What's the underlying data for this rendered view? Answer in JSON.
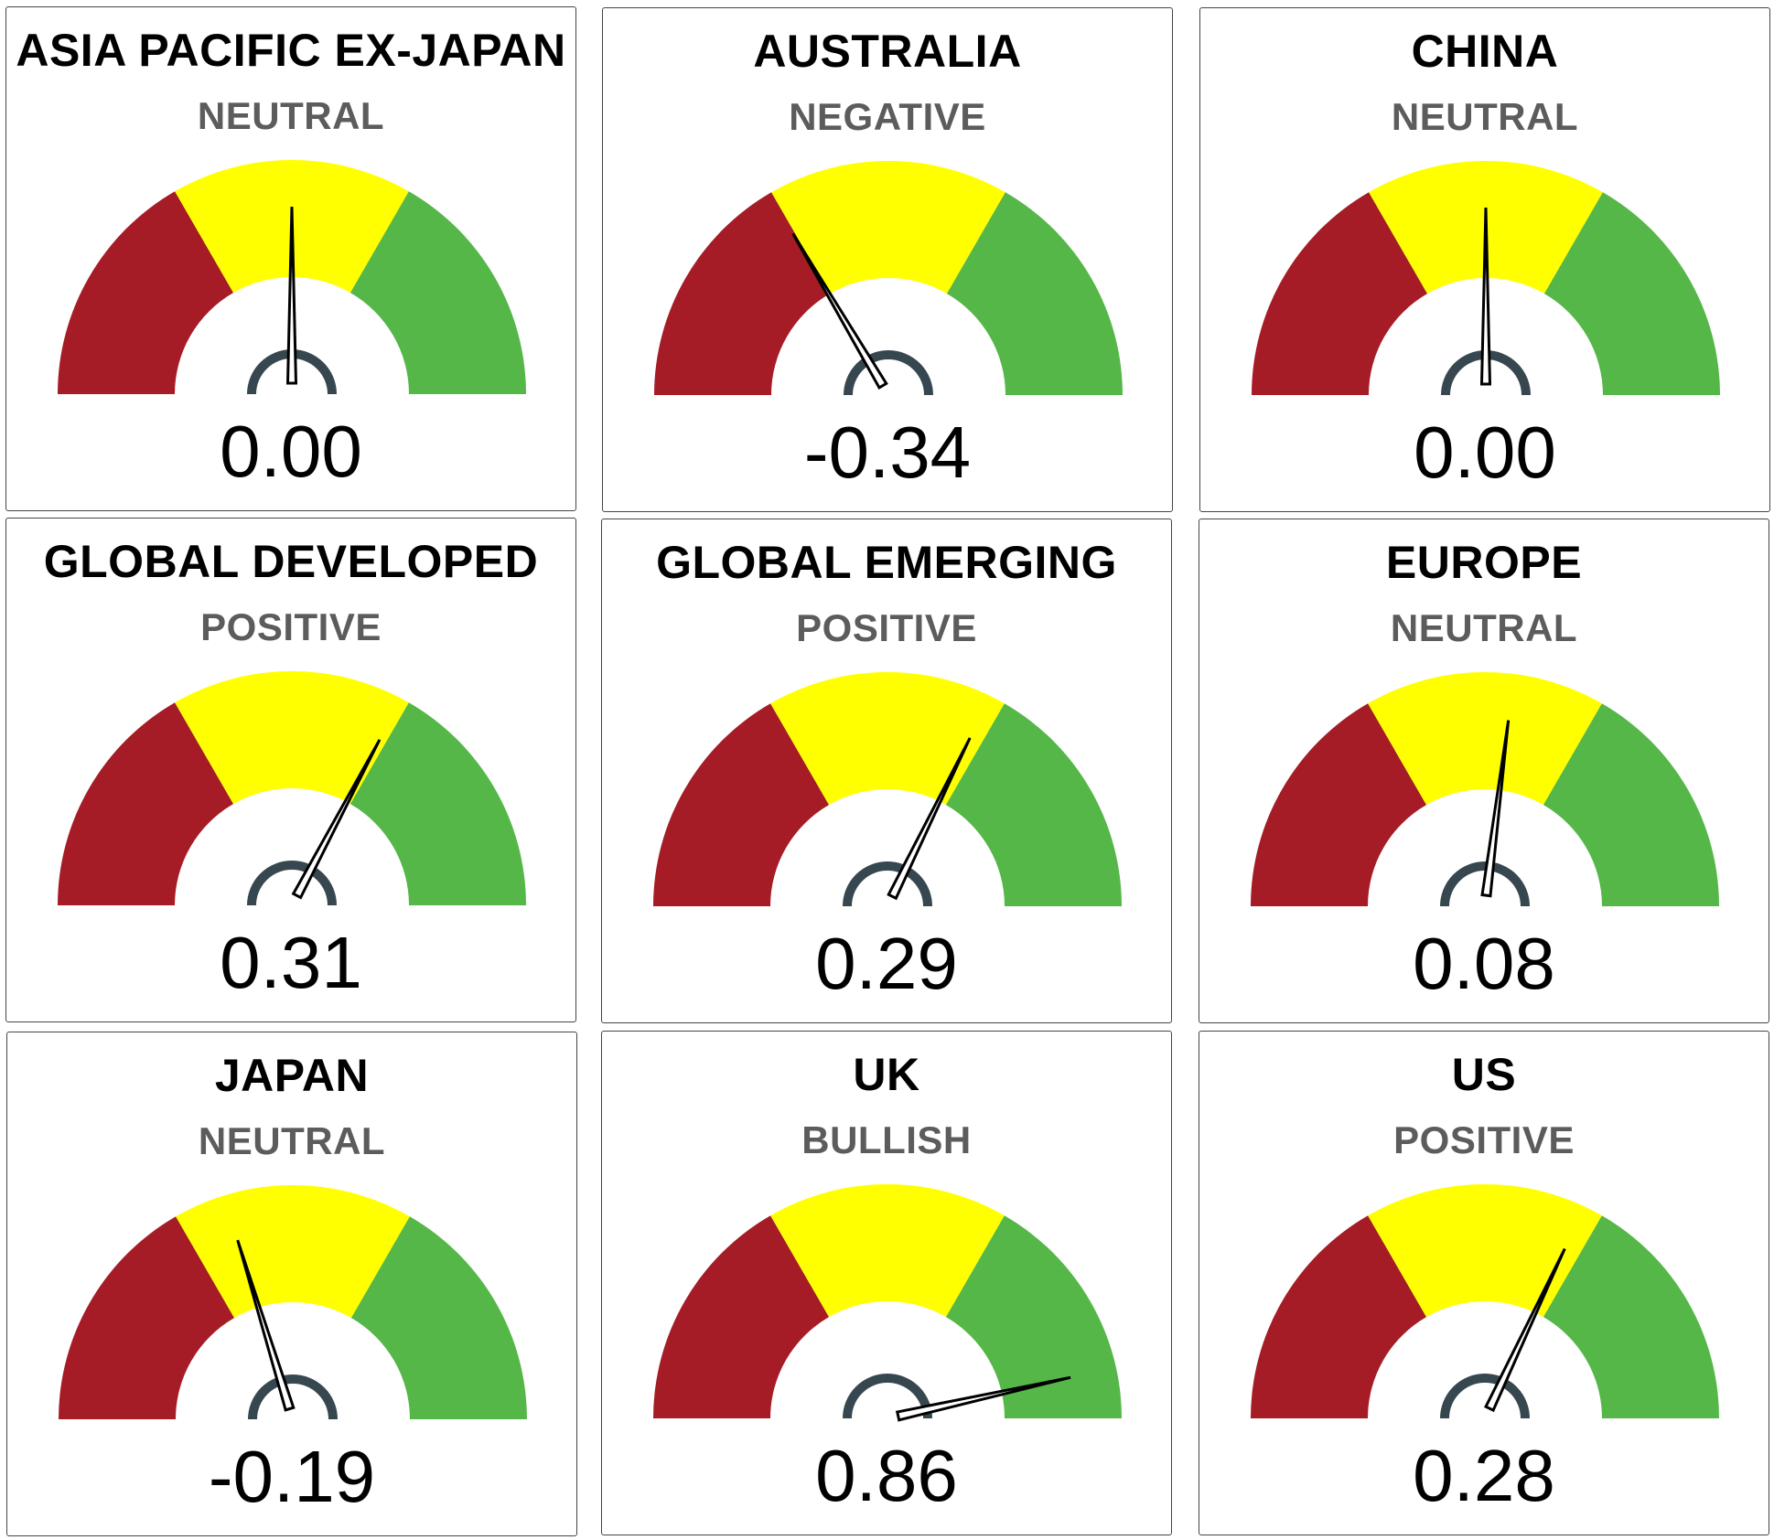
{
  "chart_data": {
    "type": "gauge",
    "range": [
      -1,
      1
    ],
    "bands": [
      {
        "from": -1,
        "to": -0.333,
        "color": "#a51c26"
      },
      {
        "from": -0.333,
        "to": 0.333,
        "color": "#ffff00"
      },
      {
        "from": 0.333,
        "to": 1,
        "color": "#55b748"
      }
    ],
    "needle_color": "#000000",
    "hub_color": "#37474f",
    "gauges": [
      {
        "title": "ASIA PACIFIC EX-JAPAN",
        "status": "NEUTRAL",
        "value": 0.0,
        "label": "0.00"
      },
      {
        "title": "AUSTRALIA",
        "status": "NEGATIVE",
        "value": -0.34,
        "label": "-0.34"
      },
      {
        "title": "CHINA",
        "status": "NEUTRAL",
        "value": 0.0,
        "label": "0.00"
      },
      {
        "title": "GLOBAL DEVELOPED",
        "status": "POSITIVE",
        "value": 0.31,
        "label": "0.31"
      },
      {
        "title": "GLOBAL EMERGING",
        "status": "POSITIVE",
        "value": 0.29,
        "label": "0.29"
      },
      {
        "title": "EUROPE",
        "status": "NEUTRAL",
        "value": 0.08,
        "label": "0.08"
      },
      {
        "title": "JAPAN",
        "status": "NEUTRAL",
        "value": -0.19,
        "label": "-0.19"
      },
      {
        "title": "UK",
        "status": "BULLISH",
        "value": 0.86,
        "label": "0.86"
      },
      {
        "title": "US",
        "status": "POSITIVE",
        "value": 0.28,
        "label": "0.28"
      }
    ]
  }
}
